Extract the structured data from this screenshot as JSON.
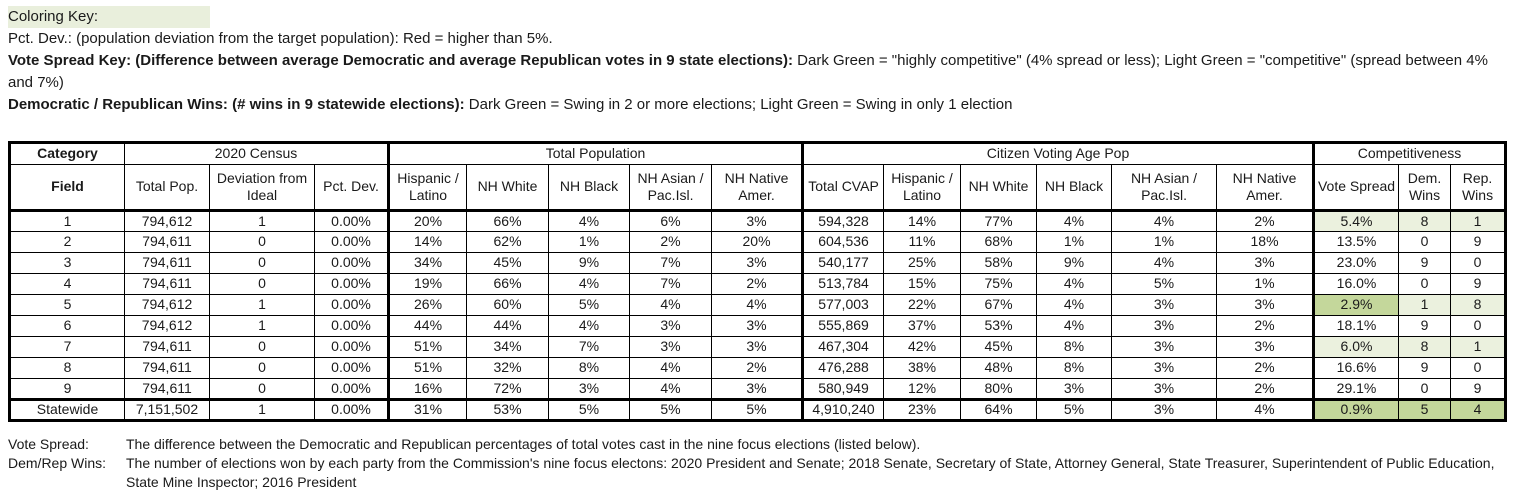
{
  "colors": {
    "light_green": "#ebf1de",
    "dark_green": "#c4d79b",
    "key_highlight": "#e9efdc",
    "red_warning_meaning": "Pct. Dev. higher than 5%"
  },
  "coloring_key": {
    "title": "Coloring Key:",
    "pct_dev": "Pct. Dev.: (population deviation from the target population): Red = higher than 5%.",
    "vote_spread_bold": "Vote Spread Key: (Difference between average Democratic and average Republican votes in 9 state elections):",
    "vote_spread_rest": " Dark Green = \"highly competitive\" (4% spread or less); Light Green = \"competitive\" (spread between 4% and 7%)",
    "wins_bold": "Democratic / Republican Wins: (# wins in 9 statewide elections):",
    "wins_rest": " Dark Green = Swing in 2 or more elections; Light Green = Swing in only 1 election"
  },
  "table": {
    "group_headers": [
      {
        "label": "Category",
        "colspan": 1
      },
      {
        "label": "2020 Census",
        "colspan": 3
      },
      {
        "label": "Total Population",
        "colspan": 5
      },
      {
        "label": "Citizen Voting Age Pop",
        "colspan": 6
      },
      {
        "label": "Competitiveness",
        "colspan": 3
      }
    ],
    "field_headers": [
      "Field",
      "Total Pop.",
      "Deviation from Ideal",
      "Pct. Dev.",
      "Hispanic / Latino",
      "NH White",
      "NH Black",
      "NH Asian / Pac.Isl.",
      "NH Native Amer.",
      "Total CVAP",
      "Hispanic / Latino",
      "NH White",
      "NH Black",
      "NH Asian / Pac.Isl.",
      "NH Native Amer.",
      "Vote Spread",
      "Dem. Wins",
      "Rep. Wins"
    ],
    "rows": [
      {
        "label": "1",
        "values": [
          "794,612",
          "1",
          "0.00%",
          "20%",
          "66%",
          "4%",
          "6%",
          "3%",
          "594,328",
          "14%",
          "77%",
          "4%",
          "4%",
          "2%",
          "5.4%",
          "8",
          "1"
        ],
        "colors": [
          "light",
          "light",
          "light"
        ]
      },
      {
        "label": "2",
        "values": [
          "794,611",
          "0",
          "0.00%",
          "14%",
          "62%",
          "1%",
          "2%",
          "20%",
          "604,536",
          "11%",
          "68%",
          "1%",
          "1%",
          "18%",
          "13.5%",
          "0",
          "9"
        ],
        "colors": [
          null,
          null,
          null
        ]
      },
      {
        "label": "3",
        "values": [
          "794,611",
          "0",
          "0.00%",
          "34%",
          "45%",
          "9%",
          "7%",
          "3%",
          "540,177",
          "25%",
          "58%",
          "9%",
          "4%",
          "3%",
          "23.0%",
          "9",
          "0"
        ],
        "colors": [
          null,
          null,
          null
        ]
      },
      {
        "label": "4",
        "values": [
          "794,611",
          "0",
          "0.00%",
          "19%",
          "66%",
          "4%",
          "7%",
          "2%",
          "513,784",
          "15%",
          "75%",
          "4%",
          "5%",
          "1%",
          "16.0%",
          "0",
          "9"
        ],
        "colors": [
          null,
          null,
          null
        ]
      },
      {
        "label": "5",
        "values": [
          "794,612",
          "1",
          "0.00%",
          "26%",
          "60%",
          "5%",
          "4%",
          "4%",
          "577,003",
          "22%",
          "67%",
          "4%",
          "3%",
          "3%",
          "2.9%",
          "1",
          "8"
        ],
        "colors": [
          "dark",
          "light",
          "light"
        ]
      },
      {
        "label": "6",
        "values": [
          "794,612",
          "1",
          "0.00%",
          "44%",
          "44%",
          "4%",
          "3%",
          "3%",
          "555,869",
          "37%",
          "53%",
          "4%",
          "3%",
          "2%",
          "18.1%",
          "9",
          "0"
        ],
        "colors": [
          null,
          null,
          null
        ]
      },
      {
        "label": "7",
        "values": [
          "794,611",
          "0",
          "0.00%",
          "51%",
          "34%",
          "7%",
          "3%",
          "3%",
          "467,304",
          "42%",
          "45%",
          "8%",
          "3%",
          "3%",
          "6.0%",
          "8",
          "1"
        ],
        "colors": [
          "light",
          "light",
          "light"
        ]
      },
      {
        "label": "8",
        "values": [
          "794,611",
          "0",
          "0.00%",
          "51%",
          "32%",
          "8%",
          "4%",
          "2%",
          "476,288",
          "38%",
          "48%",
          "8%",
          "3%",
          "2%",
          "16.6%",
          "9",
          "0"
        ],
        "colors": [
          null,
          null,
          null
        ]
      },
      {
        "label": "9",
        "values": [
          "794,611",
          "0",
          "0.00%",
          "16%",
          "72%",
          "3%",
          "4%",
          "3%",
          "580,949",
          "12%",
          "80%",
          "3%",
          "3%",
          "2%",
          "29.1%",
          "0",
          "9"
        ],
        "colors": [
          null,
          null,
          null
        ]
      },
      {
        "label": "Statewide",
        "values": [
          "7,151,502",
          "1",
          "0.00%",
          "31%",
          "53%",
          "5%",
          "5%",
          "5%",
          "4,910,240",
          "23%",
          "64%",
          "5%",
          "3%",
          "4%",
          "0.9%",
          "5",
          "4"
        ],
        "colors": [
          "dark",
          "dark",
          "dark"
        ]
      }
    ]
  },
  "footnotes": [
    {
      "label": "Vote Spread:",
      "text": "The difference between the Democratic and Republican percentages of total votes cast in the nine focus elections (listed below)."
    },
    {
      "label": "Dem/Rep Wins:",
      "text": "The number of elections won by each party from the Commission's nine focus electons: 2020 President and Senate; 2018 Senate, Secretary of State, Attorney General, State Treasurer, Superintendent of Public Education, State Mine Inspector; 2016 President"
    }
  ]
}
